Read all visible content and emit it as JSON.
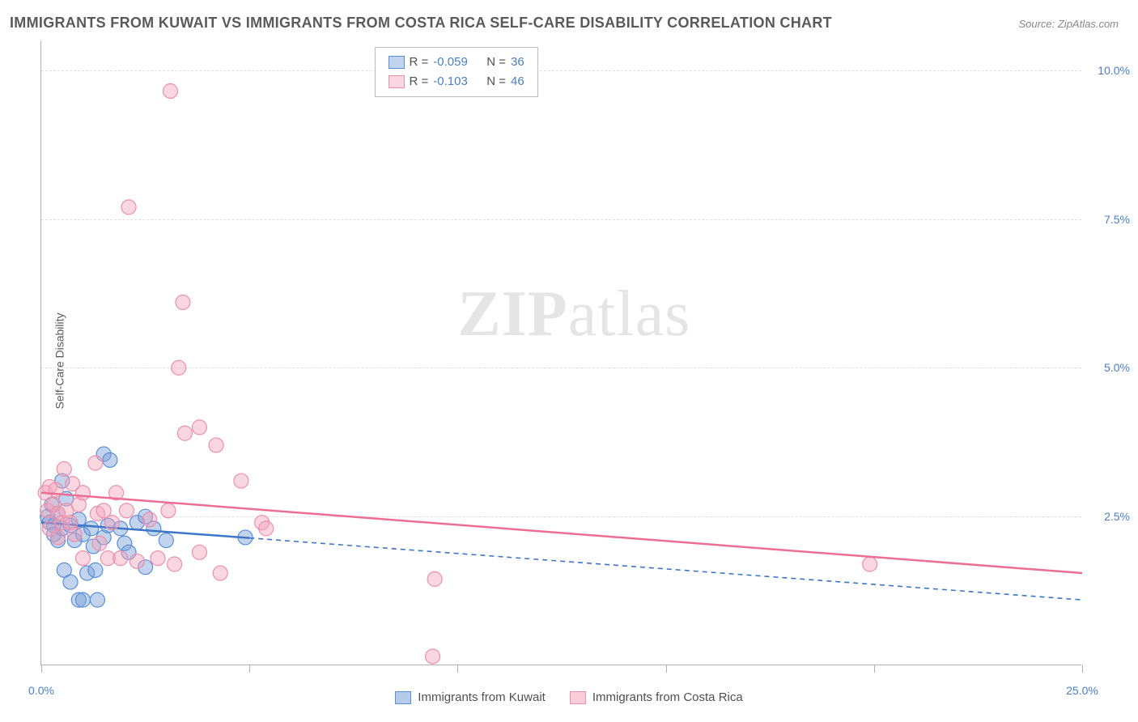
{
  "title": "IMMIGRANTS FROM KUWAIT VS IMMIGRANTS FROM COSTA RICA SELF-CARE DISABILITY CORRELATION CHART",
  "source": "Source: ZipAtlas.com",
  "y_axis_label": "Self-Care Disability",
  "watermark_zip": "ZIP",
  "watermark_atlas": "atlas",
  "chart": {
    "type": "scatter",
    "xlim": [
      0,
      25
    ],
    "ylim": [
      0,
      10.5
    ],
    "background_color": "#ffffff",
    "grid_color": "#e0e0e0",
    "axis_color": "#b0b0b0",
    "y_ticks": [
      2.5,
      5.0,
      7.5,
      10.0
    ],
    "y_tick_labels": [
      "2.5%",
      "5.0%",
      "7.5%",
      "10.0%"
    ],
    "x_ticks": [
      0,
      5,
      10,
      15,
      20,
      25
    ],
    "x_tick_labels_shown": {
      "0": "0.0%",
      "25": "25.0%"
    },
    "tick_label_color": "#4a7ec9",
    "series": [
      {
        "name": "Immigrants from Kuwait",
        "color_fill": "rgba(119,160,216,0.45)",
        "color_stroke": "#5b8fd6",
        "line_color": "#3d76c8",
        "marker_radius": 9,
        "R": "-0.059",
        "N": "36",
        "trend": {
          "x1": 0,
          "y1": 2.4,
          "x2": 25,
          "y2": 1.1,
          "solid_until_x": 5.0
        },
        "points": [
          [
            0.15,
            2.5
          ],
          [
            0.2,
            2.4
          ],
          [
            0.25,
            2.7
          ],
          [
            0.3,
            2.35
          ],
          [
            0.3,
            2.2
          ],
          [
            0.4,
            2.55
          ],
          [
            0.4,
            2.1
          ],
          [
            0.5,
            3.1
          ],
          [
            0.5,
            2.3
          ],
          [
            0.55,
            1.6
          ],
          [
            0.6,
            2.8
          ],
          [
            0.7,
            2.35
          ],
          [
            0.7,
            1.4
          ],
          [
            0.8,
            2.1
          ],
          [
            0.9,
            2.45
          ],
          [
            0.9,
            1.1
          ],
          [
            1.0,
            1.1
          ],
          [
            1.0,
            2.2
          ],
          [
            1.1,
            1.55
          ],
          [
            1.2,
            2.3
          ],
          [
            1.25,
            2.0
          ],
          [
            1.3,
            1.6
          ],
          [
            1.35,
            1.1
          ],
          [
            1.5,
            2.15
          ],
          [
            1.5,
            3.55
          ],
          [
            1.6,
            2.35
          ],
          [
            1.65,
            3.45
          ],
          [
            1.9,
            2.3
          ],
          [
            2.0,
            2.05
          ],
          [
            2.1,
            1.9
          ],
          [
            2.3,
            2.4
          ],
          [
            2.5,
            1.65
          ],
          [
            2.5,
            2.5
          ],
          [
            2.7,
            2.3
          ],
          [
            3.0,
            2.1
          ],
          [
            4.9,
            2.15
          ]
        ]
      },
      {
        "name": "Immigrants from Costa Rica",
        "color_fill": "rgba(244,164,187,0.45)",
        "color_stroke": "#eb8fab",
        "line_color": "#ec6e94",
        "marker_radius": 9,
        "R": "-0.103",
        "N": "46",
        "trend": {
          "x1": 0,
          "y1": 2.9,
          "x2": 25,
          "y2": 1.55,
          "solid_until_x": 25
        },
        "points": [
          [
            0.1,
            2.9
          ],
          [
            0.15,
            2.6
          ],
          [
            0.2,
            3.0
          ],
          [
            0.2,
            2.3
          ],
          [
            0.3,
            2.7
          ],
          [
            0.35,
            2.95
          ],
          [
            0.4,
            2.15
          ],
          [
            0.4,
            2.55
          ],
          [
            0.5,
            2.4
          ],
          [
            0.55,
            3.3
          ],
          [
            0.6,
            2.6
          ],
          [
            0.7,
            2.4
          ],
          [
            0.75,
            3.05
          ],
          [
            0.8,
            2.2
          ],
          [
            0.9,
            2.7
          ],
          [
            1.0,
            2.9
          ],
          [
            1.0,
            1.8
          ],
          [
            1.3,
            3.4
          ],
          [
            1.35,
            2.55
          ],
          [
            1.4,
            2.05
          ],
          [
            1.5,
            2.6
          ],
          [
            1.6,
            1.8
          ],
          [
            1.7,
            2.4
          ],
          [
            1.8,
            2.9
          ],
          [
            1.9,
            1.8
          ],
          [
            2.05,
            2.6
          ],
          [
            2.1,
            7.7
          ],
          [
            2.3,
            1.75
          ],
          [
            2.6,
            2.45
          ],
          [
            2.8,
            1.8
          ],
          [
            3.05,
            2.6
          ],
          [
            3.1,
            9.65
          ],
          [
            3.2,
            1.7
          ],
          [
            3.3,
            5.0
          ],
          [
            3.4,
            6.1
          ],
          [
            3.45,
            3.9
          ],
          [
            3.8,
            1.9
          ],
          [
            3.8,
            4.0
          ],
          [
            4.2,
            3.7
          ],
          [
            4.3,
            1.55
          ],
          [
            4.8,
            3.1
          ],
          [
            5.3,
            2.4
          ],
          [
            5.4,
            2.3
          ],
          [
            9.45,
            1.45
          ],
          [
            9.4,
            0.15
          ],
          [
            19.9,
            1.7
          ]
        ]
      }
    ],
    "stats_labels": {
      "R": "R =",
      "N": "N ="
    },
    "bottom_legend": [
      {
        "label": "Immigrants from Kuwait",
        "fill": "rgba(119,160,216,0.55)",
        "stroke": "#5b8fd6"
      },
      {
        "label": "Immigrants from Costa Rica",
        "fill": "rgba(244,164,187,0.55)",
        "stroke": "#eb8fab"
      }
    ]
  }
}
